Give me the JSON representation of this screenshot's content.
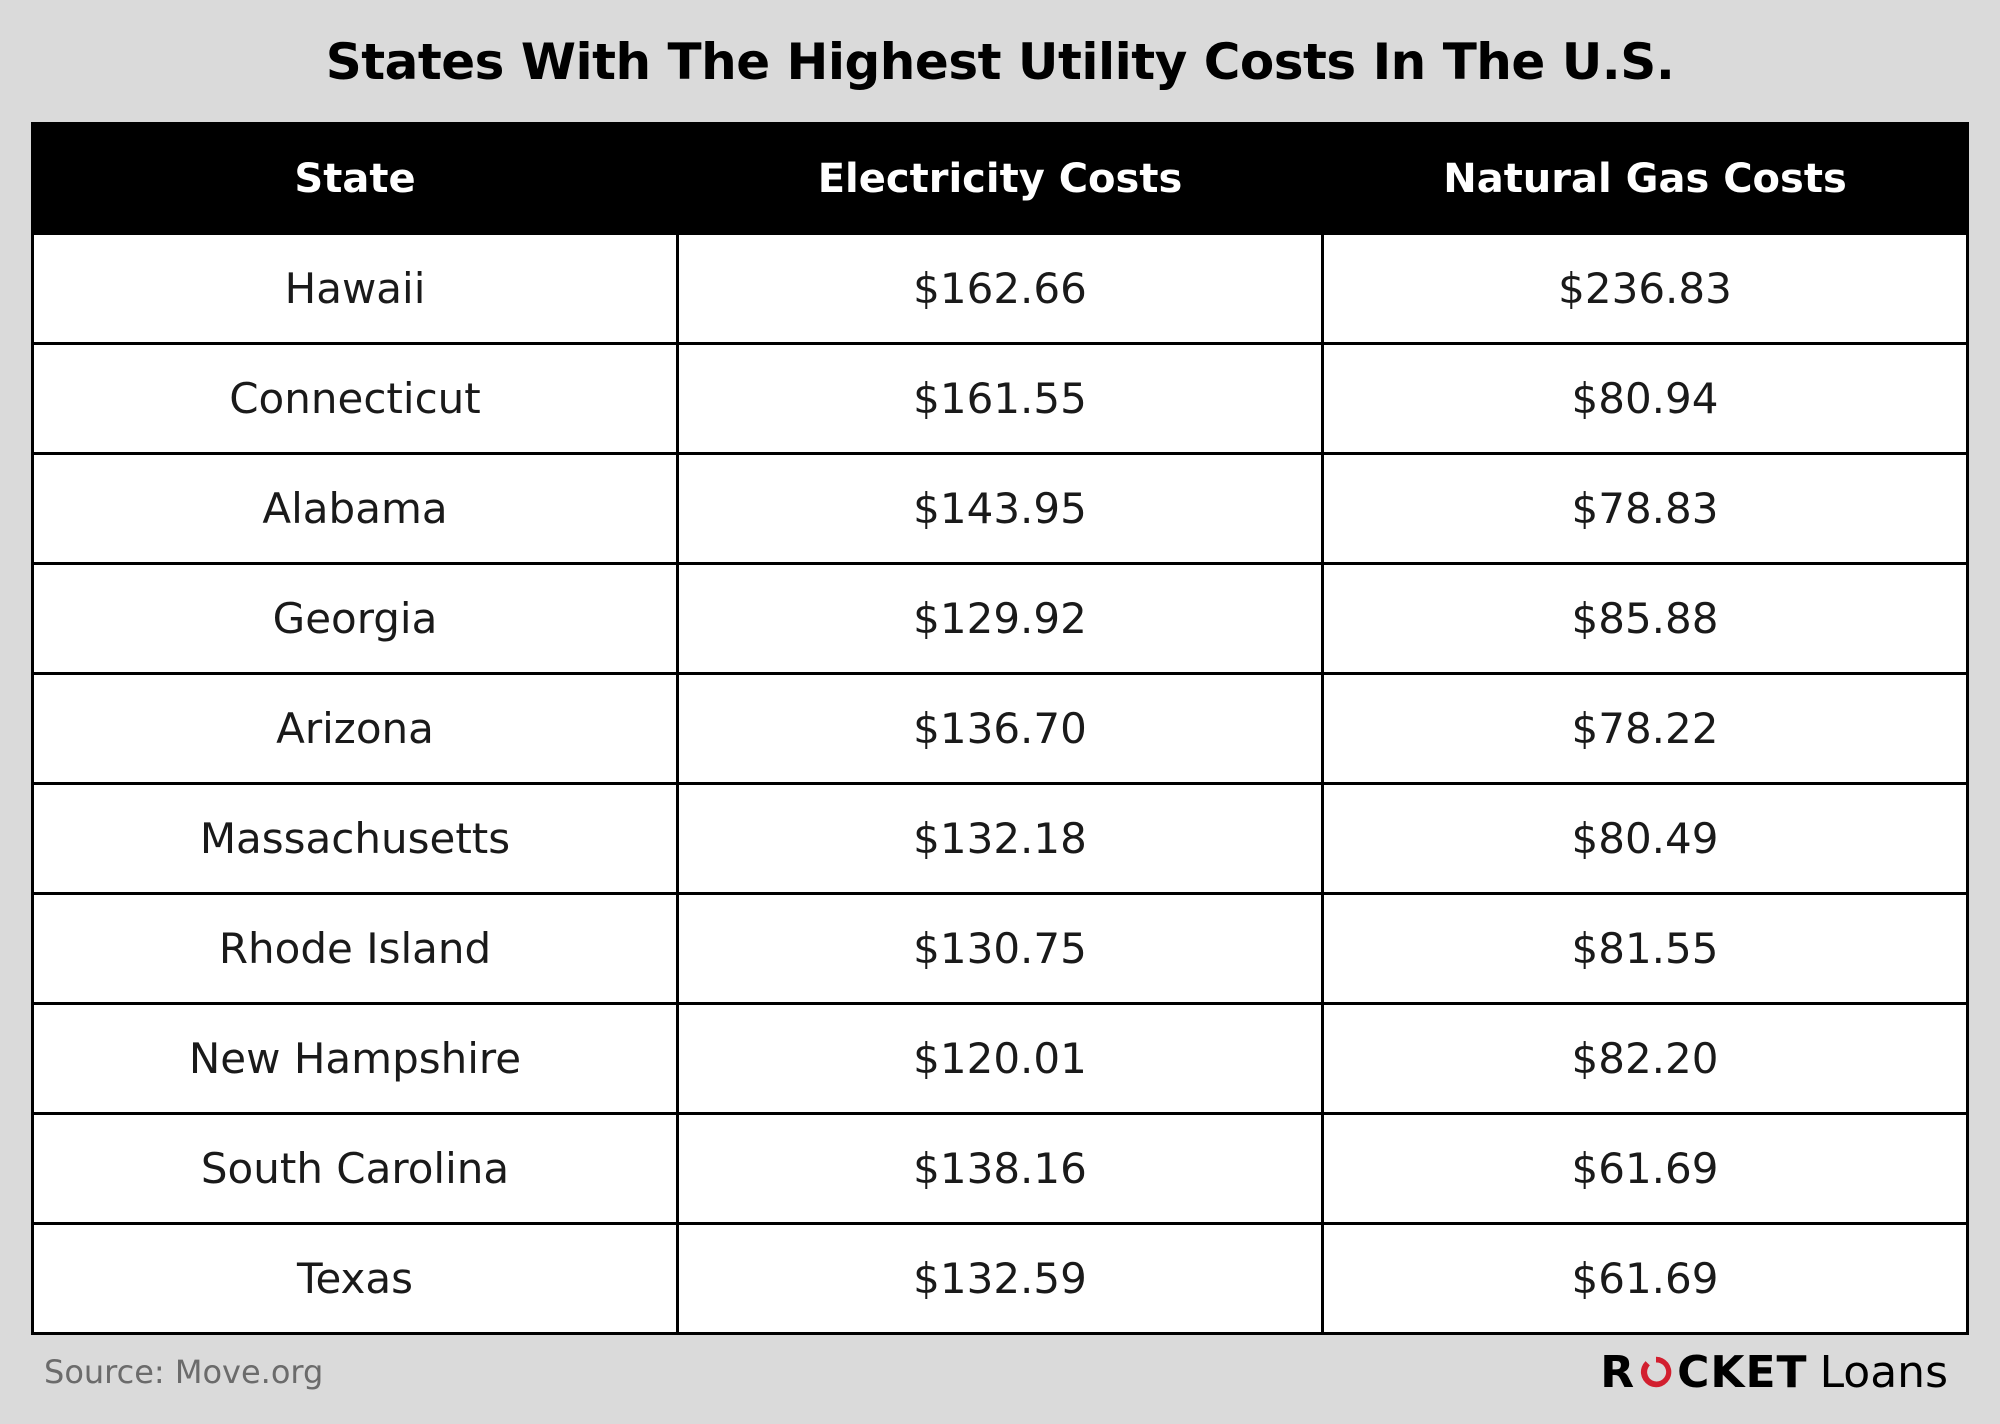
{
  "title": "States With The Highest Utility Costs In The U.S.",
  "chart_data": {
    "type": "table",
    "title": "States With The Highest Utility Costs In The U.S.",
    "columns": [
      "State",
      "Electricity Costs",
      "Natural Gas Costs"
    ],
    "rows": [
      [
        "Hawaii",
        "$162.66",
        "$236.83"
      ],
      [
        "Connecticut",
        "$161.55",
        "$80.94"
      ],
      [
        "Alabama",
        "$143.95",
        "$78.83"
      ],
      [
        "Georgia",
        "$129.92",
        "$85.88"
      ],
      [
        "Arizona",
        "$136.70",
        "$78.22"
      ],
      [
        "Massachusetts",
        "$132.18",
        "$80.49"
      ],
      [
        "Rhode Island",
        "$130.75",
        "$81.55"
      ],
      [
        "New Hampshire",
        "$120.01",
        "$82.20"
      ],
      [
        "South Carolina",
        "$138.16",
        "$61.69"
      ],
      [
        "Texas",
        "$132.59",
        "$61.69"
      ]
    ]
  },
  "footer": {
    "source": "Source: Move.org",
    "logo_brand": "ROCKET",
    "logo_product": "Loans"
  },
  "colors": {
    "logo_accent": "#d21f2f",
    "header_background": "#000000",
    "page_background": "#dadada"
  }
}
